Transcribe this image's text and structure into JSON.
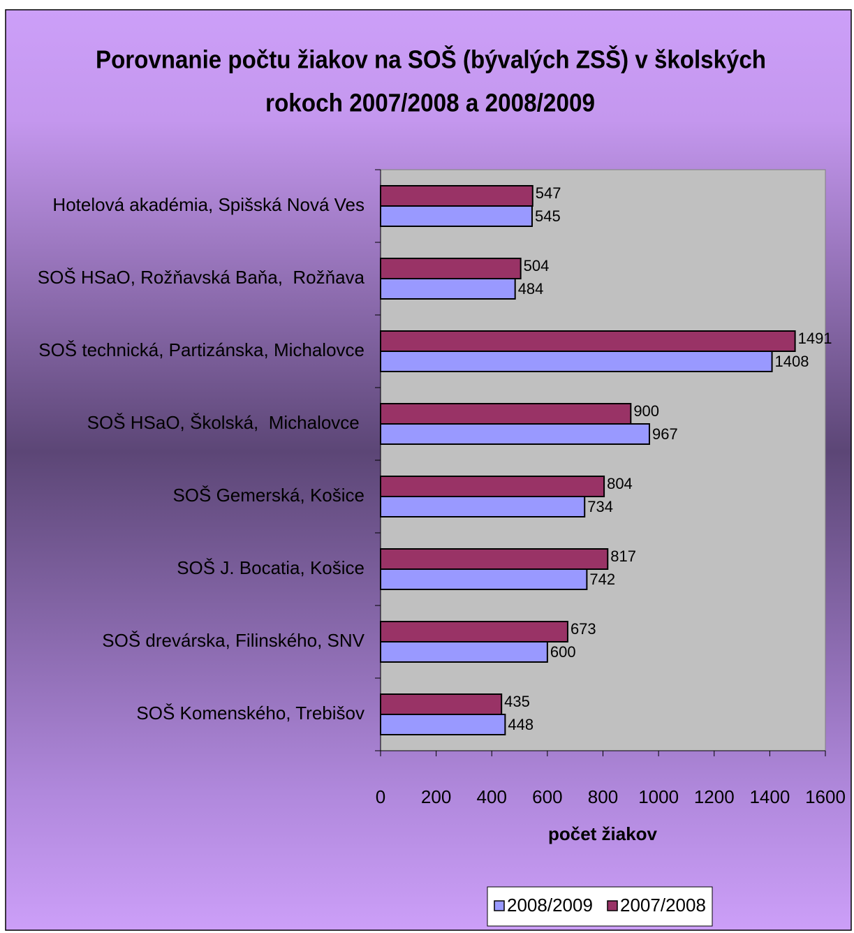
{
  "chart_data": {
    "type": "bar",
    "orientation": "horizontal",
    "title": [
      "Porovnanie počtu žiakov na SOŠ (bývalých ZSŠ) v školských",
      "rokoch 2007/2008 a 2008/2009"
    ],
    "xlabel": "počet žiakov",
    "categories": [
      "Hotelová akadémia, Spišská Nová Ves",
      "SOŠ HSaO, Rožňavská Baňa,  Rožňava",
      "SOŠ technická, Partizánska, Michalovce",
      "SOŠ HSaO, Školská,  Michalovce ",
      "SOŠ Gemerská, Košice",
      "SOŠ J. Bocatia, Košice",
      "SOŠ drevárska, Filinského, SNV",
      "SOŠ Komenského, Trebišov"
    ],
    "series": [
      {
        "name": "2008/2009",
        "color": "#9999ff",
        "values": [
          545,
          484,
          1408,
          967,
          734,
          742,
          600,
          448
        ]
      },
      {
        "name": "2007/2008",
        "color": "#993366",
        "values": [
          547,
          504,
          1491,
          900,
          804,
          817,
          673,
          435
        ]
      }
    ],
    "xlim": [
      0,
      1600
    ],
    "xticks": [
      0,
      200,
      400,
      600,
      800,
      1000,
      1200,
      1400,
      1600
    ],
    "legend": "bottom",
    "plot_background": "#c0c0c0"
  }
}
